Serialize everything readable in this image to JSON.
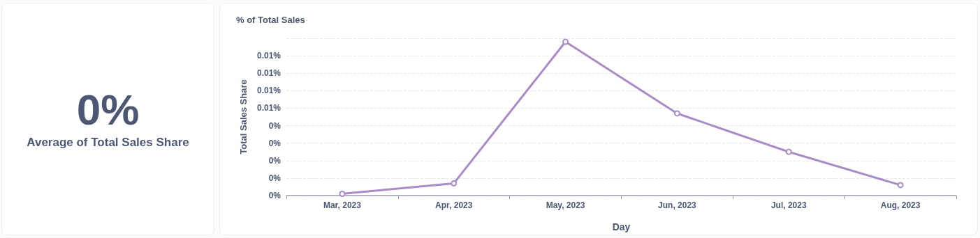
{
  "chart_data": [
    {
      "type": "other",
      "title": "0%",
      "subtitle": "Average of Total Sales Share"
    },
    {
      "type": "line",
      "title": "% of Total Sales",
      "xlabel": "Day",
      "ylabel": "Total Sales Share",
      "categories": [
        "Mar, 2023",
        "Apr, 2023",
        "May, 2023",
        "Jun, 2023",
        "Jul, 2023",
        "Aug, 2023"
      ],
      "series": [
        {
          "color": "#a98bc8",
          "values": [
            0.0001,
            0.0007,
            0.0088,
            0.0047,
            0.0025,
            0.0006
          ]
        }
      ],
      "ylim": [
        0,
        0.009
      ],
      "yticks": [
        {
          "value": 0,
          "label": "0%"
        },
        {
          "value": 0.001,
          "label": "0%"
        },
        {
          "value": 0.002,
          "label": "0%"
        },
        {
          "value": 0.003,
          "label": "0%"
        },
        {
          "value": 0.004,
          "label": "0%"
        },
        {
          "value": 0.005,
          "label": "0.01%"
        },
        {
          "value": 0.006,
          "label": "0.01%"
        },
        {
          "value": 0.007,
          "label": "0.01%"
        },
        {
          "value": 0.008,
          "label": "0.01%"
        },
        {
          "value": 0.009,
          "label": null
        }
      ],
      "grid": "y",
      "marker": "circle",
      "line_style": "solid"
    }
  ]
}
